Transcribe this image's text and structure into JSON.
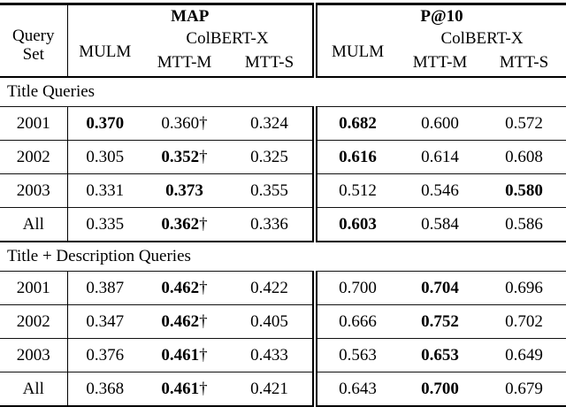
{
  "symbols": {
    "dagger": "†"
  },
  "header": {
    "query_set_line1": "Query",
    "query_set_line2": "Set",
    "map_label": "MAP",
    "p10_label": "P@10",
    "mulm": "MULM",
    "colbert_x": "ColBERT-X",
    "mtt_m": "MTT-M",
    "mtt_s": "MTT-S"
  },
  "sections": [
    {
      "title": "Title Queries",
      "rows": [
        {
          "query": "2001",
          "cells": [
            {
              "v": "0.370",
              "bold": true
            },
            {
              "v": "0.360",
              "dagger": true
            },
            {
              "v": "0.324"
            },
            {
              "v": "0.682",
              "bold": true
            },
            {
              "v": "0.600"
            },
            {
              "v": "0.572"
            }
          ]
        },
        {
          "query": "2002",
          "cells": [
            {
              "v": "0.305"
            },
            {
              "v": "0.352",
              "bold": true,
              "dagger": true
            },
            {
              "v": "0.325"
            },
            {
              "v": "0.616",
              "bold": true
            },
            {
              "v": "0.614"
            },
            {
              "v": "0.608"
            }
          ]
        },
        {
          "query": "2003",
          "cells": [
            {
              "v": "0.331"
            },
            {
              "v": "0.373",
              "bold": true
            },
            {
              "v": "0.355"
            },
            {
              "v": "0.512"
            },
            {
              "v": "0.546"
            },
            {
              "v": "0.580",
              "bold": true
            }
          ]
        },
        {
          "query": "All",
          "cells": [
            {
              "v": "0.335"
            },
            {
              "v": "0.362",
              "bold": true,
              "dagger": true
            },
            {
              "v": "0.336"
            },
            {
              "v": "0.603",
              "bold": true
            },
            {
              "v": "0.584"
            },
            {
              "v": "0.586"
            }
          ]
        }
      ]
    },
    {
      "title": "Title + Description Queries",
      "rows": [
        {
          "query": "2001",
          "cells": [
            {
              "v": "0.387"
            },
            {
              "v": "0.462",
              "bold": true,
              "dagger": true
            },
            {
              "v": "0.422"
            },
            {
              "v": "0.700"
            },
            {
              "v": "0.704",
              "bold": true
            },
            {
              "v": "0.696"
            }
          ]
        },
        {
          "query": "2002",
          "cells": [
            {
              "v": "0.347"
            },
            {
              "v": "0.462",
              "bold": true,
              "dagger": true
            },
            {
              "v": "0.405"
            },
            {
              "v": "0.666"
            },
            {
              "v": "0.752",
              "bold": true
            },
            {
              "v": "0.702"
            }
          ]
        },
        {
          "query": "2003",
          "cells": [
            {
              "v": "0.376"
            },
            {
              "v": "0.461",
              "bold": true,
              "dagger": true
            },
            {
              "v": "0.433"
            },
            {
              "v": "0.563"
            },
            {
              "v": "0.653",
              "bold": true
            },
            {
              "v": "0.649"
            }
          ]
        },
        {
          "query": "All",
          "cells": [
            {
              "v": "0.368"
            },
            {
              "v": "0.461",
              "bold": true,
              "dagger": true
            },
            {
              "v": "0.421"
            },
            {
              "v": "0.643"
            },
            {
              "v": "0.700",
              "bold": true
            },
            {
              "v": "0.679"
            }
          ]
        }
      ]
    }
  ]
}
